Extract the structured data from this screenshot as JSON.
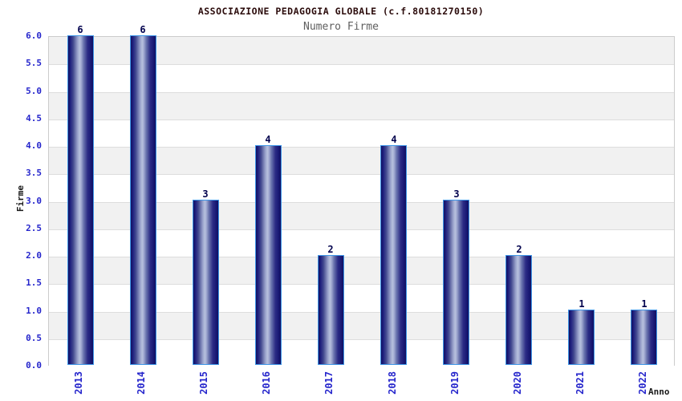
{
  "chart_data": {
    "type": "bar",
    "title": "ASSOCIAZIONE PEDAGOGIA GLOBALE (c.f.80181270150)",
    "subtitle": "Numero Firme",
    "categories": [
      "2013",
      "2014",
      "2015",
      "2016",
      "2017",
      "2018",
      "2019",
      "2020",
      "2021",
      "2022"
    ],
    "values": [
      6,
      6,
      3,
      4,
      2,
      4,
      3,
      2,
      1,
      1
    ],
    "xlabel": "Anno",
    "ylabel": "Firme",
    "ylim": [
      0,
      6
    ],
    "ytick_step": 0.5,
    "ytick_decimals": 1,
    "grid": true,
    "legend": "none",
    "colors": {
      "title": "#2b0b0b",
      "subtitle": "#5f5f5f",
      "tick_label": "#2626cc",
      "value_label": "#00004d",
      "axis_title": "#1a1a1a",
      "band_gray": "#f1f1f1",
      "band_white": "#ffffff",
      "gridline": "#dddddd",
      "plot_border": "#cccccc",
      "bar_border": "#3f97e8",
      "bar_dark": "#111160",
      "bar_mid": "#41488f",
      "bar_light": "#b7c0de"
    }
  }
}
